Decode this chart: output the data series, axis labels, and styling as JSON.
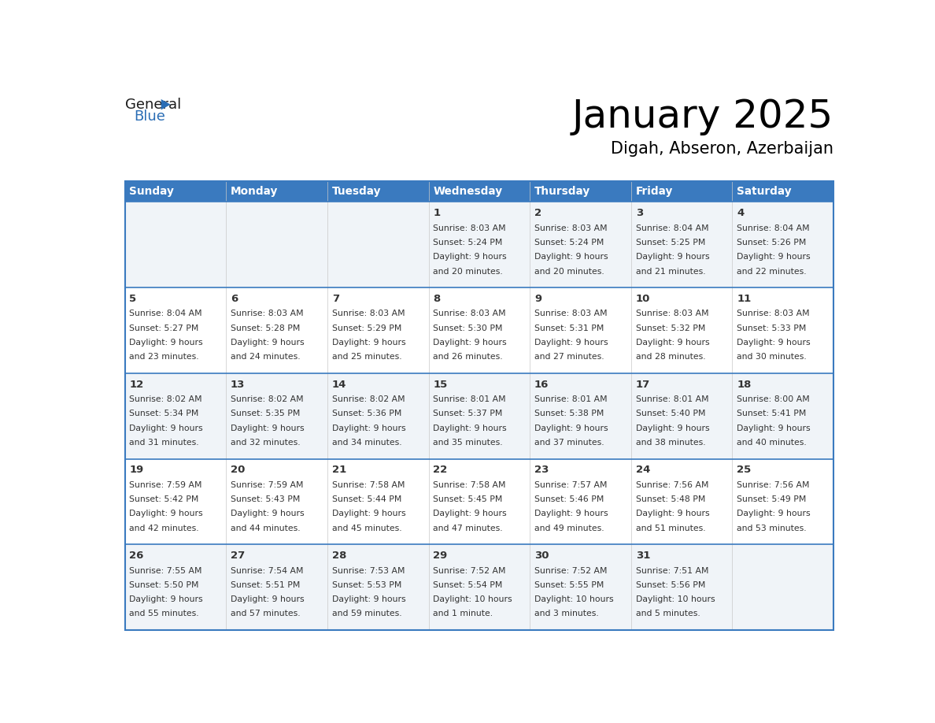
{
  "title": "January 2025",
  "subtitle": "Digah, Abseron, Azerbaijan",
  "header_bg_color": "#3a7abf",
  "header_text_color": "#ffffff",
  "cell_bg_row0": "#f0f4f8",
  "cell_bg_row1": "#ffffff",
  "cell_bg_row2": "#f0f4f8",
  "cell_bg_row3": "#ffffff",
  "cell_bg_row4": "#f0f4f8",
  "row_line_color": "#3a7abf",
  "text_color": "#333333",
  "day_headers": [
    "Sunday",
    "Monday",
    "Tuesday",
    "Wednesday",
    "Thursday",
    "Friday",
    "Saturday"
  ],
  "days_data": [
    {
      "day": 1,
      "col": 3,
      "row": 0,
      "sunrise": "8:03 AM",
      "sunset": "5:24 PM",
      "daylight_hours": 9,
      "daylight_minutes": 20
    },
    {
      "day": 2,
      "col": 4,
      "row": 0,
      "sunrise": "8:03 AM",
      "sunset": "5:24 PM",
      "daylight_hours": 9,
      "daylight_minutes": 20
    },
    {
      "day": 3,
      "col": 5,
      "row": 0,
      "sunrise": "8:04 AM",
      "sunset": "5:25 PM",
      "daylight_hours": 9,
      "daylight_minutes": 21
    },
    {
      "day": 4,
      "col": 6,
      "row": 0,
      "sunrise": "8:04 AM",
      "sunset": "5:26 PM",
      "daylight_hours": 9,
      "daylight_minutes": 22
    },
    {
      "day": 5,
      "col": 0,
      "row": 1,
      "sunrise": "8:04 AM",
      "sunset": "5:27 PM",
      "daylight_hours": 9,
      "daylight_minutes": 23
    },
    {
      "day": 6,
      "col": 1,
      "row": 1,
      "sunrise": "8:03 AM",
      "sunset": "5:28 PM",
      "daylight_hours": 9,
      "daylight_minutes": 24
    },
    {
      "day": 7,
      "col": 2,
      "row": 1,
      "sunrise": "8:03 AM",
      "sunset": "5:29 PM",
      "daylight_hours": 9,
      "daylight_minutes": 25
    },
    {
      "day": 8,
      "col": 3,
      "row": 1,
      "sunrise": "8:03 AM",
      "sunset": "5:30 PM",
      "daylight_hours": 9,
      "daylight_minutes": 26
    },
    {
      "day": 9,
      "col": 4,
      "row": 1,
      "sunrise": "8:03 AM",
      "sunset": "5:31 PM",
      "daylight_hours": 9,
      "daylight_minutes": 27
    },
    {
      "day": 10,
      "col": 5,
      "row": 1,
      "sunrise": "8:03 AM",
      "sunset": "5:32 PM",
      "daylight_hours": 9,
      "daylight_minutes": 28
    },
    {
      "day": 11,
      "col": 6,
      "row": 1,
      "sunrise": "8:03 AM",
      "sunset": "5:33 PM",
      "daylight_hours": 9,
      "daylight_minutes": 30
    },
    {
      "day": 12,
      "col": 0,
      "row": 2,
      "sunrise": "8:02 AM",
      "sunset": "5:34 PM",
      "daylight_hours": 9,
      "daylight_minutes": 31
    },
    {
      "day": 13,
      "col": 1,
      "row": 2,
      "sunrise": "8:02 AM",
      "sunset": "5:35 PM",
      "daylight_hours": 9,
      "daylight_minutes": 32
    },
    {
      "day": 14,
      "col": 2,
      "row": 2,
      "sunrise": "8:02 AM",
      "sunset": "5:36 PM",
      "daylight_hours": 9,
      "daylight_minutes": 34
    },
    {
      "day": 15,
      "col": 3,
      "row": 2,
      "sunrise": "8:01 AM",
      "sunset": "5:37 PM",
      "daylight_hours": 9,
      "daylight_minutes": 35
    },
    {
      "day": 16,
      "col": 4,
      "row": 2,
      "sunrise": "8:01 AM",
      "sunset": "5:38 PM",
      "daylight_hours": 9,
      "daylight_minutes": 37
    },
    {
      "day": 17,
      "col": 5,
      "row": 2,
      "sunrise": "8:01 AM",
      "sunset": "5:40 PM",
      "daylight_hours": 9,
      "daylight_minutes": 38
    },
    {
      "day": 18,
      "col": 6,
      "row": 2,
      "sunrise": "8:00 AM",
      "sunset": "5:41 PM",
      "daylight_hours": 9,
      "daylight_minutes": 40
    },
    {
      "day": 19,
      "col": 0,
      "row": 3,
      "sunrise": "7:59 AM",
      "sunset": "5:42 PM",
      "daylight_hours": 9,
      "daylight_minutes": 42
    },
    {
      "day": 20,
      "col": 1,
      "row": 3,
      "sunrise": "7:59 AM",
      "sunset": "5:43 PM",
      "daylight_hours": 9,
      "daylight_minutes": 44
    },
    {
      "day": 21,
      "col": 2,
      "row": 3,
      "sunrise": "7:58 AM",
      "sunset": "5:44 PM",
      "daylight_hours": 9,
      "daylight_minutes": 45
    },
    {
      "day": 22,
      "col": 3,
      "row": 3,
      "sunrise": "7:58 AM",
      "sunset": "5:45 PM",
      "daylight_hours": 9,
      "daylight_minutes": 47
    },
    {
      "day": 23,
      "col": 4,
      "row": 3,
      "sunrise": "7:57 AM",
      "sunset": "5:46 PM",
      "daylight_hours": 9,
      "daylight_minutes": 49
    },
    {
      "day": 24,
      "col": 5,
      "row": 3,
      "sunrise": "7:56 AM",
      "sunset": "5:48 PM",
      "daylight_hours": 9,
      "daylight_minutes": 51
    },
    {
      "day": 25,
      "col": 6,
      "row": 3,
      "sunrise": "7:56 AM",
      "sunset": "5:49 PM",
      "daylight_hours": 9,
      "daylight_minutes": 53
    },
    {
      "day": 26,
      "col": 0,
      "row": 4,
      "sunrise": "7:55 AM",
      "sunset": "5:50 PM",
      "daylight_hours": 9,
      "daylight_minutes": 55
    },
    {
      "day": 27,
      "col": 1,
      "row": 4,
      "sunrise": "7:54 AM",
      "sunset": "5:51 PM",
      "daylight_hours": 9,
      "daylight_minutes": 57
    },
    {
      "day": 28,
      "col": 2,
      "row": 4,
      "sunrise": "7:53 AM",
      "sunset": "5:53 PM",
      "daylight_hours": 9,
      "daylight_minutes": 59
    },
    {
      "day": 29,
      "col": 3,
      "row": 4,
      "sunrise": "7:52 AM",
      "sunset": "5:54 PM",
      "daylight_hours": 10,
      "daylight_minutes": 1
    },
    {
      "day": 30,
      "col": 4,
      "row": 4,
      "sunrise": "7:52 AM",
      "sunset": "5:55 PM",
      "daylight_hours": 10,
      "daylight_minutes": 3
    },
    {
      "day": 31,
      "col": 5,
      "row": 4,
      "sunrise": "7:51 AM",
      "sunset": "5:56 PM",
      "daylight_hours": 10,
      "daylight_minutes": 5
    }
  ],
  "num_rows": 5,
  "num_cols": 7,
  "logo_triangle_color": "#2a6db5",
  "logo_blue_color": "#2a6db5"
}
